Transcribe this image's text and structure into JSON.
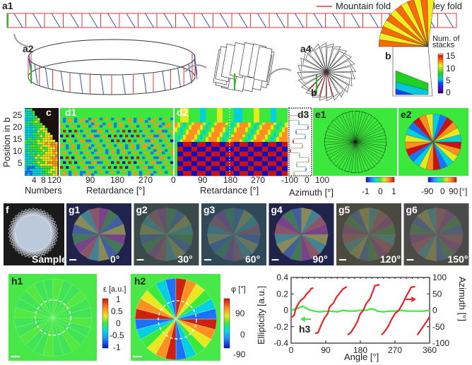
{
  "panels": {
    "a1": "a1",
    "a2": "a2",
    "a3": "a3",
    "a4": "a4",
    "b": "b",
    "b_pointer": "b",
    "c": "c",
    "d1": "d1",
    "d2": "d2",
    "d3": "d3",
    "e1": "e1",
    "e2": "e2",
    "f": "f",
    "g1": "g1",
    "g2": "g2",
    "g3": "g3",
    "g4": "g4",
    "g5": "g5",
    "g6": "g6",
    "h1": "h1",
    "h2": "h2",
    "h3": "h3"
  },
  "legend": {
    "mountain": "Mountain fold",
    "valley": "Valley fold",
    "mountain_color": "#e8343a",
    "valley_color": "#3b4fa8"
  },
  "b_colorbar": {
    "title1": "Num. of",
    "title2": "stacks",
    "ticks": [
      "15",
      "10",
      "5",
      "0"
    ]
  },
  "c_axes": {
    "ylabel": "Position in b",
    "yticks": [
      "25",
      "20",
      "15",
      "10",
      "5"
    ],
    "xticks": [
      "4",
      "8",
      "12"
    ],
    "xlabel": "Numbers"
  },
  "d1_axes": {
    "xticks": [
      "0",
      "90",
      "180",
      "270"
    ],
    "xlabel": "Retardance [°]"
  },
  "d2_axes": {
    "xticks": [
      "0",
      "90",
      "180",
      "270"
    ],
    "xlabel": "Retardance [°]"
  },
  "d3_axes": {
    "xticks": [
      "-100",
      "0",
      "100"
    ],
    "xlabel": "Azimuth [°]"
  },
  "e1_colorbar": {
    "ticks": [
      "-1",
      "0",
      "1"
    ]
  },
  "e2_colorbar": {
    "ticks": [
      "-90",
      "0",
      "90"
    ],
    "unit": "[°]"
  },
  "f_caption": "Sample",
  "g_angles": [
    "0°",
    "30°",
    "60°",
    "90°",
    "120°",
    "150°"
  ],
  "h1_colorbar": {
    "title": "ε [a.u.]",
    "ticks": [
      "1",
      "0.5",
      "0",
      "-0.5",
      "-1"
    ]
  },
  "h2_colorbar": {
    "title": "φ [°]",
    "ticks": [
      "90",
      "0",
      "-90"
    ]
  },
  "chart_data": {
    "type": "line",
    "title": "",
    "xlabel": "Angle [°]",
    "ylabel": "Ellipticity [a.u.]",
    "y2label": "Azimuth [°]",
    "xlim": [
      0,
      360
    ],
    "ylim": [
      -0.4,
      0.4
    ],
    "y2lim": [
      -100,
      100
    ],
    "xticks": [
      "0",
      "90",
      "180",
      "270",
      "360"
    ],
    "yticks": [
      "0.4",
      "0.2",
      "0",
      "-0.2",
      "-0.4"
    ],
    "y2ticks": [
      "100",
      "50",
      "0",
      "-50",
      "-100"
    ],
    "grid": false,
    "series": [
      {
        "axis": "left",
        "color": "#3de83d",
        "x": [
          0,
          15,
          30,
          45,
          60,
          75,
          90,
          105,
          120,
          135,
          150,
          165,
          180,
          195,
          210,
          225,
          240,
          255,
          270,
          285,
          300,
          315,
          330,
          345,
          360
        ],
        "y": [
          0.0,
          0.02,
          0.05,
          0.01,
          -0.01,
          -0.02,
          -0.01,
          -0.01,
          -0.02,
          0.0,
          -0.01,
          -0.01,
          0.0,
          0.0,
          0.02,
          -0.01,
          -0.02,
          -0.01,
          -0.01,
          0.0,
          -0.01,
          -0.01,
          -0.01,
          -0.01,
          0.0
        ]
      },
      {
        "axis": "right",
        "color": "#e8242a",
        "segments": [
          {
            "x": [
              0,
              8,
              12,
              20,
              25,
              35,
              40,
              48,
              52,
              58
            ],
            "y": [
              -22,
              -15,
              5,
              22,
              30,
              40,
              50,
              58,
              66,
              68
            ]
          },
          {
            "x": [
              62,
              70,
              78,
              86,
              95,
              100,
              110,
              118,
              125,
              135,
              145
            ],
            "y": [
              -70,
              -68,
              -45,
              -25,
              -10,
              10,
              22,
              40,
              50,
              65,
              72
            ]
          },
          {
            "x": [
              147,
              155,
              165,
              172,
              180,
              188,
              195,
              205,
              210,
              218,
              230
            ],
            "y": [
              -75,
              -68,
              -50,
              -35,
              -10,
              0,
              20,
              35,
              50,
              75,
              78
            ]
          },
          {
            "x": [
              235,
              243,
              252,
              260,
              270,
              280,
              290,
              298,
              305,
              312,
              322
            ],
            "y": [
              -75,
              -65,
              -50,
              -30,
              -10,
              0,
              20,
              40,
              55,
              70,
              72
            ]
          },
          {
            "x": [
              328,
              336,
              344,
              352,
              360
            ],
            "y": [
              -75,
              -62,
              -48,
              -35,
              -20
            ]
          }
        ]
      }
    ],
    "annotations": [
      "→ (right axis)",
      "← (left axis)"
    ]
  }
}
